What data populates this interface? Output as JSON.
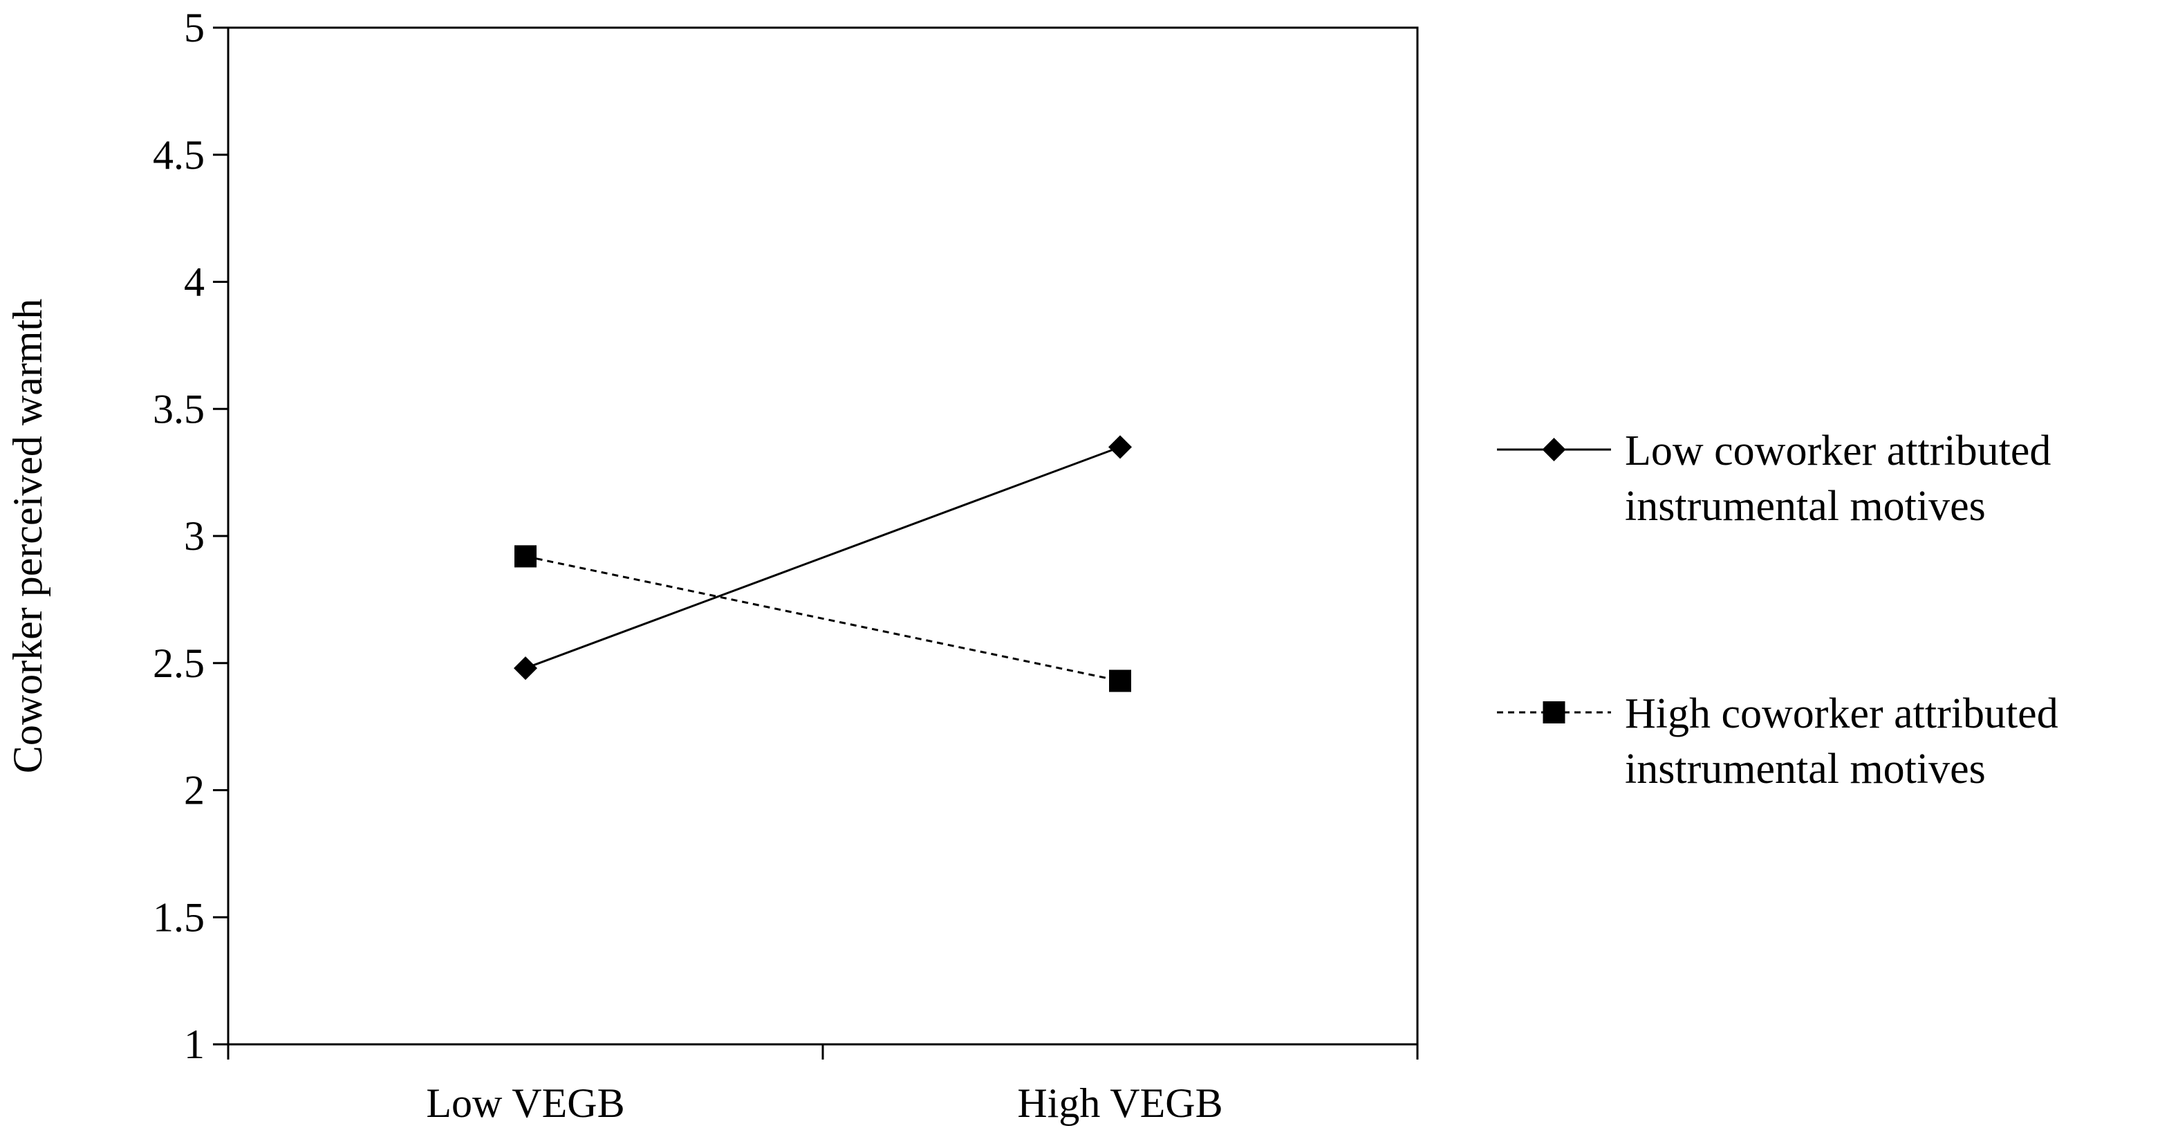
{
  "chart_data": {
    "type": "line",
    "title": "",
    "xlabel": "",
    "ylabel": "Coworker perceived warmth",
    "categories": [
      "Low VEGB",
      "High VEGB"
    ],
    "ylim": [
      1,
      5
    ],
    "yticks": [
      "1",
      "1.5",
      "2",
      "2.5",
      "3",
      "3.5",
      "4",
      "4.5",
      "5"
    ],
    "grid": false,
    "legend_position": "right",
    "series": [
      {
        "name": "Low coworker attributed instrumental motives",
        "legend_lines": [
          "Low coworker attributed",
          "instrumental motives"
        ],
        "values": [
          2.48,
          3.35
        ],
        "line_style": "solid",
        "marker": "diamond",
        "color": "#000000"
      },
      {
        "name": "High coworker attributed instrumental motives",
        "legend_lines": [
          "High coworker attributed",
          "instrumental motives"
        ],
        "values": [
          2.92,
          2.43
        ],
        "line_style": "dashed",
        "marker": "square",
        "color": "#000000"
      }
    ]
  }
}
